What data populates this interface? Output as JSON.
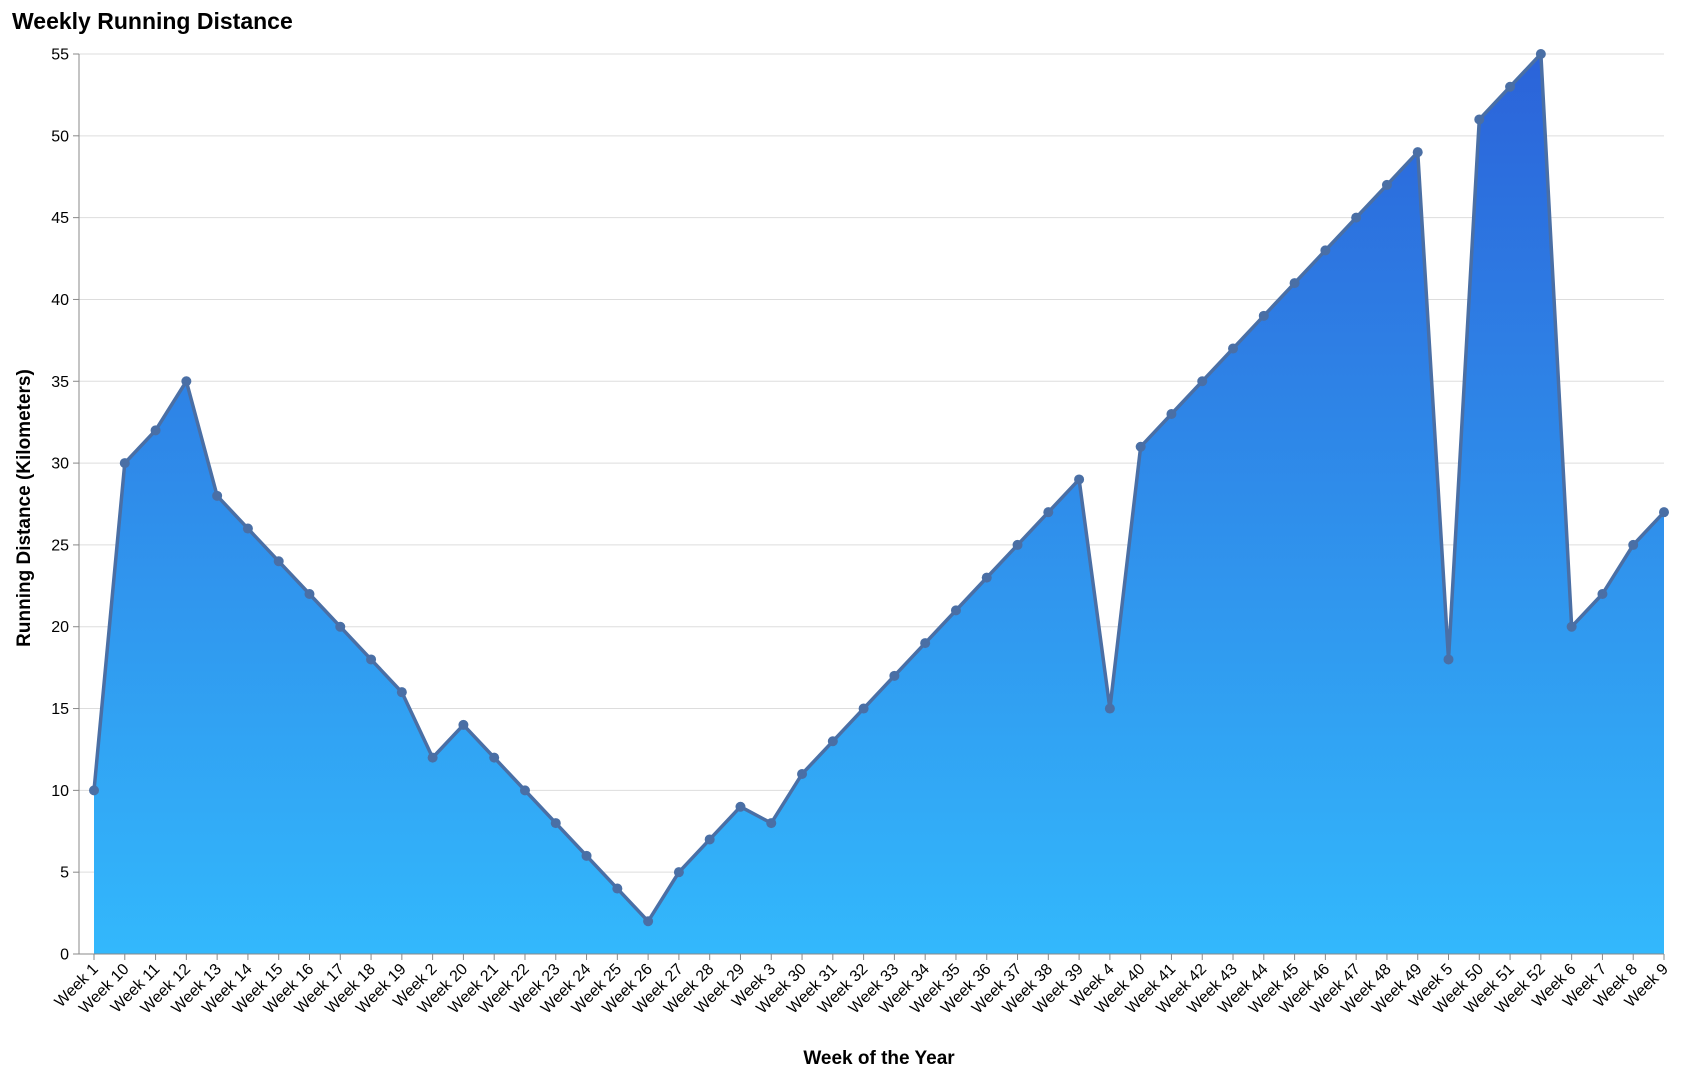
{
  "chart_data": {
    "type": "area",
    "title": "Weekly Running Distance",
    "xlabel": "Week of the Year",
    "ylabel": "Running Distance (Kilometers)",
    "ylim": [
      0,
      55
    ],
    "yticks": [
      "0",
      "5",
      "10",
      "15",
      "20",
      "25",
      "30",
      "35",
      "40",
      "45",
      "50",
      "55"
    ],
    "grid": true,
    "colors": {
      "area_top": "#2b63d9",
      "area_bottom": "#33b8fc",
      "line": "#4a6fa5",
      "grid": "#dddddd",
      "axis": "#888888"
    },
    "categories": [
      "Week 1",
      "Week 10",
      "Week 11",
      "Week 12",
      "Week 13",
      "Week 14",
      "Week 15",
      "Week 16",
      "Week 17",
      "Week 18",
      "Week 19",
      "Week 2",
      "Week 20",
      "Week 21",
      "Week 22",
      "Week 23",
      "Week 24",
      "Week 25",
      "Week 26",
      "Week 27",
      "Week 28",
      "Week 29",
      "Week 3",
      "Week 30",
      "Week 31",
      "Week 32",
      "Week 33",
      "Week 34",
      "Week 35",
      "Week 36",
      "Week 37",
      "Week 38",
      "Week 39",
      "Week 4",
      "Week 40",
      "Week 41",
      "Week 42",
      "Week 43",
      "Week 44",
      "Week 45",
      "Week 46",
      "Week 47",
      "Week 48",
      "Week 49",
      "Week 5",
      "Week 50",
      "Week 51",
      "Week 52",
      "Week 6",
      "Week 7",
      "Week 8",
      "Week 9"
    ],
    "values": [
      10,
      30,
      32,
      35,
      28,
      26,
      24,
      22,
      20,
      18,
      16,
      12,
      14,
      12,
      10,
      8,
      6,
      4,
      2,
      5,
      7,
      9,
      8,
      11,
      13,
      15,
      17,
      19,
      21,
      23,
      25,
      27,
      29,
      15,
      31,
      33,
      35,
      37,
      39,
      41,
      43,
      45,
      47,
      49,
      18,
      51,
      53,
      55,
      20,
      22,
      25,
      27
    ]
  }
}
